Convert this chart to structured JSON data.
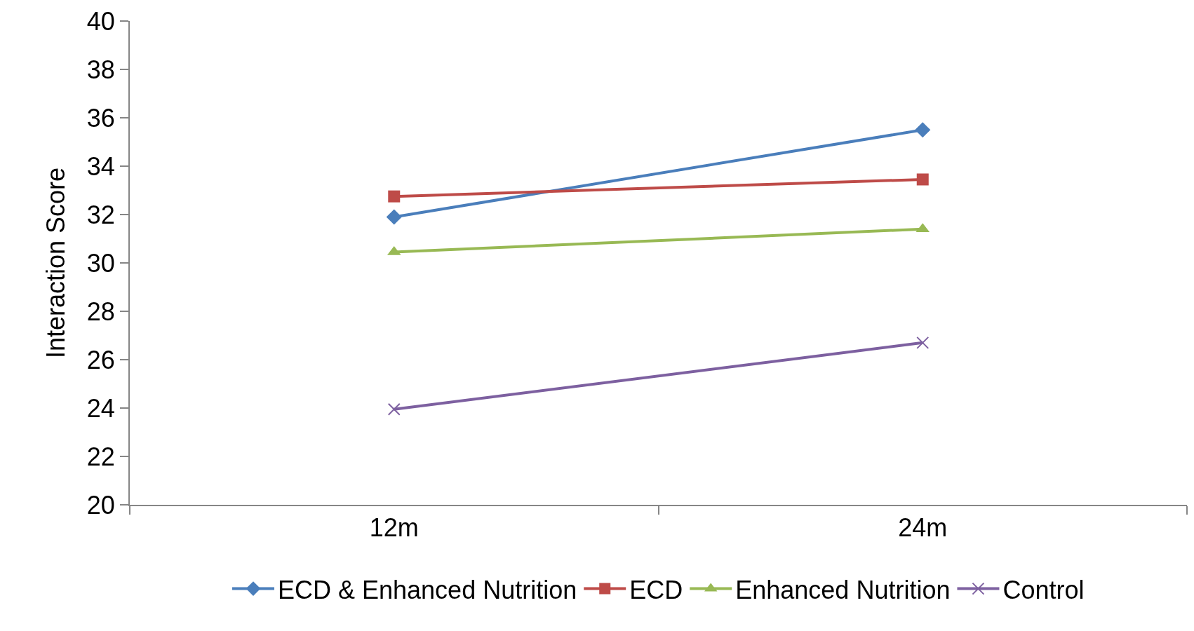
{
  "chart_data": {
    "type": "line",
    "ylabel": "Interaction Score",
    "categories": [
      "12m",
      "24m"
    ],
    "series": [
      {
        "name": "ECD & Enhanced Nutrition",
        "color": "#4a7ebb",
        "marker": "diamond",
        "values": [
          31.9,
          35.5
        ]
      },
      {
        "name": "ECD",
        "color": "#be4b48",
        "marker": "square",
        "values": [
          32.75,
          33.45
        ]
      },
      {
        "name": "Enhanced Nutrition",
        "color": "#98b954",
        "marker": "triangle",
        "values": [
          30.45,
          31.4
        ]
      },
      {
        "name": "Control",
        "color": "#7d60a0",
        "marker": "cross",
        "values": [
          23.95,
          26.7
        ]
      }
    ],
    "ylim": [
      20,
      40
    ],
    "yticks": [
      20,
      22,
      24,
      26,
      28,
      30,
      32,
      34,
      36,
      38,
      40
    ],
    "grid": false,
    "legend": "bottom",
    "line_style": "solid"
  }
}
